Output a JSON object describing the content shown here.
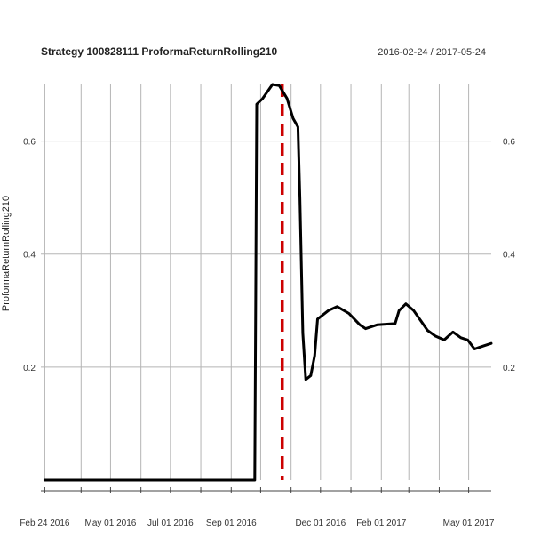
{
  "chart_data": {
    "type": "line",
    "title": "Strategy 100828111 ProformaReturnRolling210",
    "date_range": "2016-02-24 / 2017-05-24",
    "ylabel": "ProformaReturnRolling210",
    "xlabel": "",
    "xlim": [
      "2016-02-20",
      "2017-05-24"
    ],
    "ylim": [
      0.0,
      0.7
    ],
    "grid": true,
    "x_ticks": [
      {
        "date": "2016-02-24",
        "label": "Feb 24 2016"
      },
      {
        "date": "2016-05-01",
        "label": "May 01 2016"
      },
      {
        "date": "2016-07-01",
        "label": "Jul 01 2016"
      },
      {
        "date": "2016-09-01",
        "label": "Sep 01 2016"
      },
      {
        "date": "2016-12-01",
        "label": "Dec 01 2016"
      },
      {
        "date": "2017-02-01",
        "label": "Feb 01 2017"
      },
      {
        "date": "2017-05-01",
        "label": "May 01 2017"
      }
    ],
    "y_ticks": [
      {
        "value": 0.2,
        "label": "0.2"
      },
      {
        "value": 0.4,
        "label": "0.4"
      },
      {
        "value": 0.6,
        "label": "0.6"
      }
    ],
    "vertical_gridlines": [
      "2016-02-24",
      "2016-04-01",
      "2016-05-01",
      "2016-06-01",
      "2016-07-01",
      "2016-08-01",
      "2016-09-01",
      "2016-10-01",
      "2016-11-01",
      "2016-12-01",
      "2017-01-01",
      "2017-02-01",
      "2017-03-01",
      "2017-04-01",
      "2017-05-01"
    ],
    "reference_line": {
      "date": "2016-10-23",
      "color": "#cc0000",
      "style": "dashed"
    },
    "series": [
      {
        "color": "#000000",
        "points": [
          {
            "date": "2016-02-24",
            "value": 0.0
          },
          {
            "date": "2016-09-25",
            "value": 0.0
          },
          {
            "date": "2016-09-26",
            "value": 0.33
          },
          {
            "date": "2016-09-27",
            "value": 0.665
          },
          {
            "date": "2016-10-03",
            "value": 0.675
          },
          {
            "date": "2016-10-13",
            "value": 0.7
          },
          {
            "date": "2016-10-20",
            "value": 0.698
          },
          {
            "date": "2016-10-28",
            "value": 0.675
          },
          {
            "date": "2016-11-03",
            "value": 0.64
          },
          {
            "date": "2016-11-08",
            "value": 0.625
          },
          {
            "date": "2016-11-10",
            "value": 0.5
          },
          {
            "date": "2016-11-13",
            "value": 0.26
          },
          {
            "date": "2016-11-16",
            "value": 0.178
          },
          {
            "date": "2016-11-21",
            "value": 0.185
          },
          {
            "date": "2016-11-25",
            "value": 0.22
          },
          {
            "date": "2016-11-28",
            "value": 0.285
          },
          {
            "date": "2016-12-09",
            "value": 0.3
          },
          {
            "date": "2016-12-18",
            "value": 0.307
          },
          {
            "date": "2016-12-30",
            "value": 0.295
          },
          {
            "date": "2017-01-10",
            "value": 0.275
          },
          {
            "date": "2017-01-16",
            "value": 0.268
          },
          {
            "date": "2017-01-28",
            "value": 0.275
          },
          {
            "date": "2017-02-15",
            "value": 0.277
          },
          {
            "date": "2017-02-19",
            "value": 0.3
          },
          {
            "date": "2017-02-26",
            "value": 0.312
          },
          {
            "date": "2017-03-06",
            "value": 0.3
          },
          {
            "date": "2017-03-14",
            "value": 0.28
          },
          {
            "date": "2017-03-20",
            "value": 0.265
          },
          {
            "date": "2017-03-28",
            "value": 0.255
          },
          {
            "date": "2017-04-06",
            "value": 0.248
          },
          {
            "date": "2017-04-15",
            "value": 0.262
          },
          {
            "date": "2017-04-23",
            "value": 0.252
          },
          {
            "date": "2017-04-30",
            "value": 0.248
          },
          {
            "date": "2017-05-07",
            "value": 0.232
          },
          {
            "date": "2017-05-12",
            "value": 0.235
          },
          {
            "date": "2017-05-17",
            "value": 0.238
          },
          {
            "date": "2017-05-24",
            "value": 0.242
          }
        ]
      }
    ]
  }
}
